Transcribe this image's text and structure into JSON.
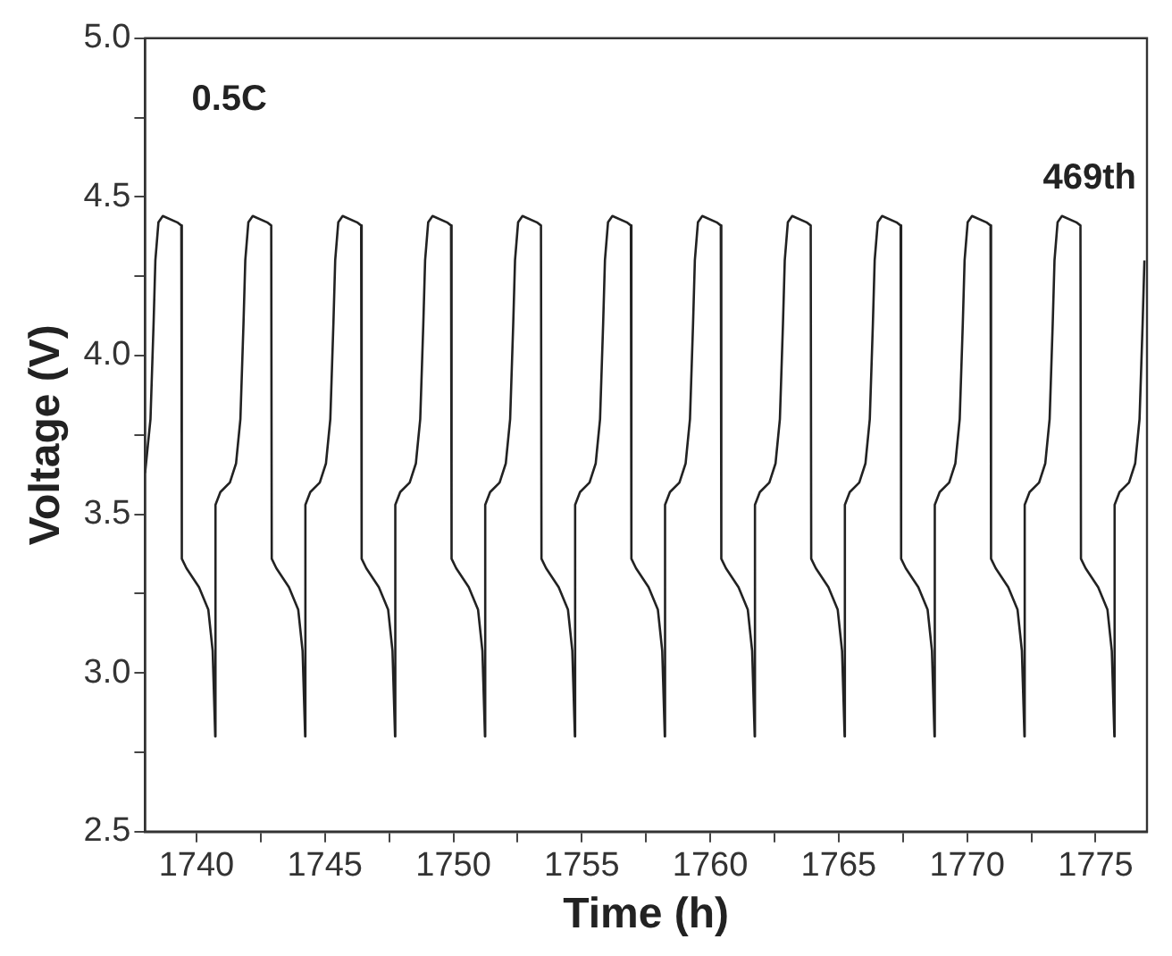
{
  "chart_data": {
    "type": "line",
    "xlabel": "Time (h)",
    "ylabel": "Voltage (V)",
    "annotations": [
      "0.5C",
      "469th"
    ],
    "marker": "none",
    "line_style": "solid",
    "xlim": [
      1738,
      1777
    ],
    "ylim": [
      2.5,
      5.0
    ],
    "xticks": [
      1740,
      {
        "value": 1742.5,
        "label": null
      },
      1745,
      {
        "value": 1747.5,
        "label": null
      },
      1750,
      {
        "value": 1752.5,
        "label": null
      },
      1755,
      {
        "value": 1757.5,
        "label": null
      },
      1760,
      {
        "value": 1762.5,
        "label": null
      },
      1765,
      {
        "value": 1767.5,
        "label": null
      },
      1770,
      {
        "value": 1772.5,
        "label": null
      },
      1775
    ],
    "yticks": [
      {
        "value": 2.5,
        "label": "2.5"
      },
      {
        "value": 2.75,
        "label": null
      },
      {
        "value": 3.0,
        "label": "3.0"
      },
      {
        "value": 3.25,
        "label": null
      },
      3.5,
      {
        "value": 3.75,
        "label": null
      },
      {
        "value": 4.0,
        "label": "4.0"
      },
      {
        "value": 4.25,
        "label": null
      },
      4.5,
      {
        "value": 4.75,
        "label": null
      },
      {
        "value": 5.0,
        "label": "5.0"
      }
    ],
    "x": [
      1738.0,
      1738.21,
      1738.33,
      1738.4,
      1738.52,
      1738.69,
      1739.25,
      1739.41,
      1739.43,
      1739.61,
      1740.1,
      1740.46,
      1740.63,
      1740.73,
      1740.74,
      1740.93,
      1741.3,
      1741.54,
      1741.71,
      1741.83,
      1741.9,
      1742.02,
      1742.19,
      1742.75,
      1742.91,
      1742.93,
      1743.11,
      1743.6,
      1743.96,
      1744.13,
      1744.23,
      1744.24,
      1744.43,
      1744.8,
      1745.04,
      1745.21,
      1745.33,
      1745.4,
      1745.52,
      1745.69,
      1746.25,
      1746.41,
      1746.43,
      1746.61,
      1747.1,
      1747.46,
      1747.63,
      1747.73,
      1747.74,
      1747.93,
      1748.3,
      1748.54,
      1748.71,
      1748.83,
      1748.9,
      1749.02,
      1749.19,
      1749.75,
      1749.91,
      1749.93,
      1750.11,
      1750.6,
      1750.96,
      1751.13,
      1751.23,
      1751.24,
      1751.43,
      1751.8,
      1752.04,
      1752.21,
      1752.33,
      1752.4,
      1752.52,
      1752.69,
      1753.25,
      1753.41,
      1753.43,
      1753.61,
      1754.1,
      1754.46,
      1754.63,
      1754.73,
      1754.74,
      1754.93,
      1755.3,
      1755.54,
      1755.71,
      1755.83,
      1755.9,
      1756.02,
      1756.19,
      1756.75,
      1756.91,
      1756.93,
      1757.11,
      1757.6,
      1757.96,
      1758.13,
      1758.23,
      1758.24,
      1758.43,
      1758.8,
      1759.04,
      1759.21,
      1759.33,
      1759.4,
      1759.52,
      1759.69,
      1760.25,
      1760.41,
      1760.43,
      1760.61,
      1761.1,
      1761.46,
      1761.63,
      1761.73,
      1761.74,
      1761.93,
      1762.3,
      1762.54,
      1762.71,
      1762.83,
      1762.9,
      1763.02,
      1763.19,
      1763.75,
      1763.91,
      1763.93,
      1764.11,
      1764.6,
      1764.96,
      1765.13,
      1765.23,
      1765.24,
      1765.43,
      1765.8,
      1766.04,
      1766.21,
      1766.33,
      1766.4,
      1766.52,
      1766.69,
      1767.25,
      1767.41,
      1767.43,
      1767.61,
      1768.1,
      1768.46,
      1768.63,
      1768.73,
      1768.74,
      1768.93,
      1769.3,
      1769.54,
      1769.71,
      1769.83,
      1769.9,
      1770.02,
      1770.19,
      1770.75,
      1770.91,
      1770.93,
      1771.11,
      1771.6,
      1771.96,
      1772.13,
      1772.23,
      1772.24,
      1772.43,
      1772.8,
      1773.04,
      1773.21,
      1773.33,
      1773.4,
      1773.52,
      1773.69,
      1774.25,
      1774.41,
      1774.43,
      1774.61,
      1775.1,
      1775.46,
      1775.63,
      1775.73,
      1775.74,
      1775.93,
      1776.3,
      1776.54,
      1776.71,
      1776.83,
      1776.9
    ],
    "series": [
      {
        "color": "#222222",
        "values": [
          3.63,
          3.8,
          4.1,
          4.3,
          4.42,
          4.44,
          4.42,
          4.41,
          3.36,
          3.33,
          3.27,
          3.2,
          3.07,
          2.8,
          3.53,
          3.57,
          3.6,
          3.66,
          3.8,
          4.1,
          4.3,
          4.42,
          4.44,
          4.42,
          4.41,
          3.36,
          3.33,
          3.27,
          3.2,
          3.07,
          2.8,
          3.53,
          3.57,
          3.6,
          3.66,
          3.8,
          4.1,
          4.3,
          4.42,
          4.44,
          4.42,
          4.41,
          3.36,
          3.33,
          3.27,
          3.2,
          3.07,
          2.8,
          3.53,
          3.57,
          3.6,
          3.66,
          3.8,
          4.1,
          4.3,
          4.42,
          4.44,
          4.42,
          4.41,
          3.36,
          3.33,
          3.27,
          3.2,
          3.07,
          2.8,
          3.53,
          3.57,
          3.6,
          3.66,
          3.8,
          4.1,
          4.3,
          4.42,
          4.44,
          4.42,
          4.41,
          3.36,
          3.33,
          3.27,
          3.2,
          3.07,
          2.8,
          3.53,
          3.57,
          3.6,
          3.66,
          3.8,
          4.1,
          4.3,
          4.42,
          4.44,
          4.42,
          4.41,
          3.36,
          3.33,
          3.27,
          3.2,
          3.07,
          2.8,
          3.53,
          3.57,
          3.6,
          3.66,
          3.8,
          4.1,
          4.3,
          4.42,
          4.44,
          4.42,
          4.41,
          3.36,
          3.33,
          3.27,
          3.2,
          3.07,
          2.8,
          3.53,
          3.57,
          3.6,
          3.66,
          3.8,
          4.1,
          4.3,
          4.42,
          4.44,
          4.42,
          4.41,
          3.36,
          3.33,
          3.27,
          3.2,
          3.07,
          2.8,
          3.53,
          3.57,
          3.6,
          3.66,
          3.8,
          4.1,
          4.3,
          4.42,
          4.44,
          4.42,
          4.41,
          3.36,
          3.33,
          3.27,
          3.2,
          3.07,
          2.8,
          3.53,
          3.57,
          3.6,
          3.66,
          3.8,
          4.1,
          4.3,
          4.42,
          4.44,
          4.42,
          4.41,
          3.36,
          3.33,
          3.27,
          3.2,
          3.07,
          2.8,
          3.53,
          3.57,
          3.6,
          3.66,
          3.8,
          4.1,
          4.3,
          4.42,
          4.44,
          4.42,
          4.41,
          3.36,
          3.33,
          3.27,
          3.2,
          3.07,
          2.8,
          3.53,
          3.57,
          3.6,
          3.66,
          3.8,
          4.1,
          4.3
        ]
      }
    ]
  }
}
